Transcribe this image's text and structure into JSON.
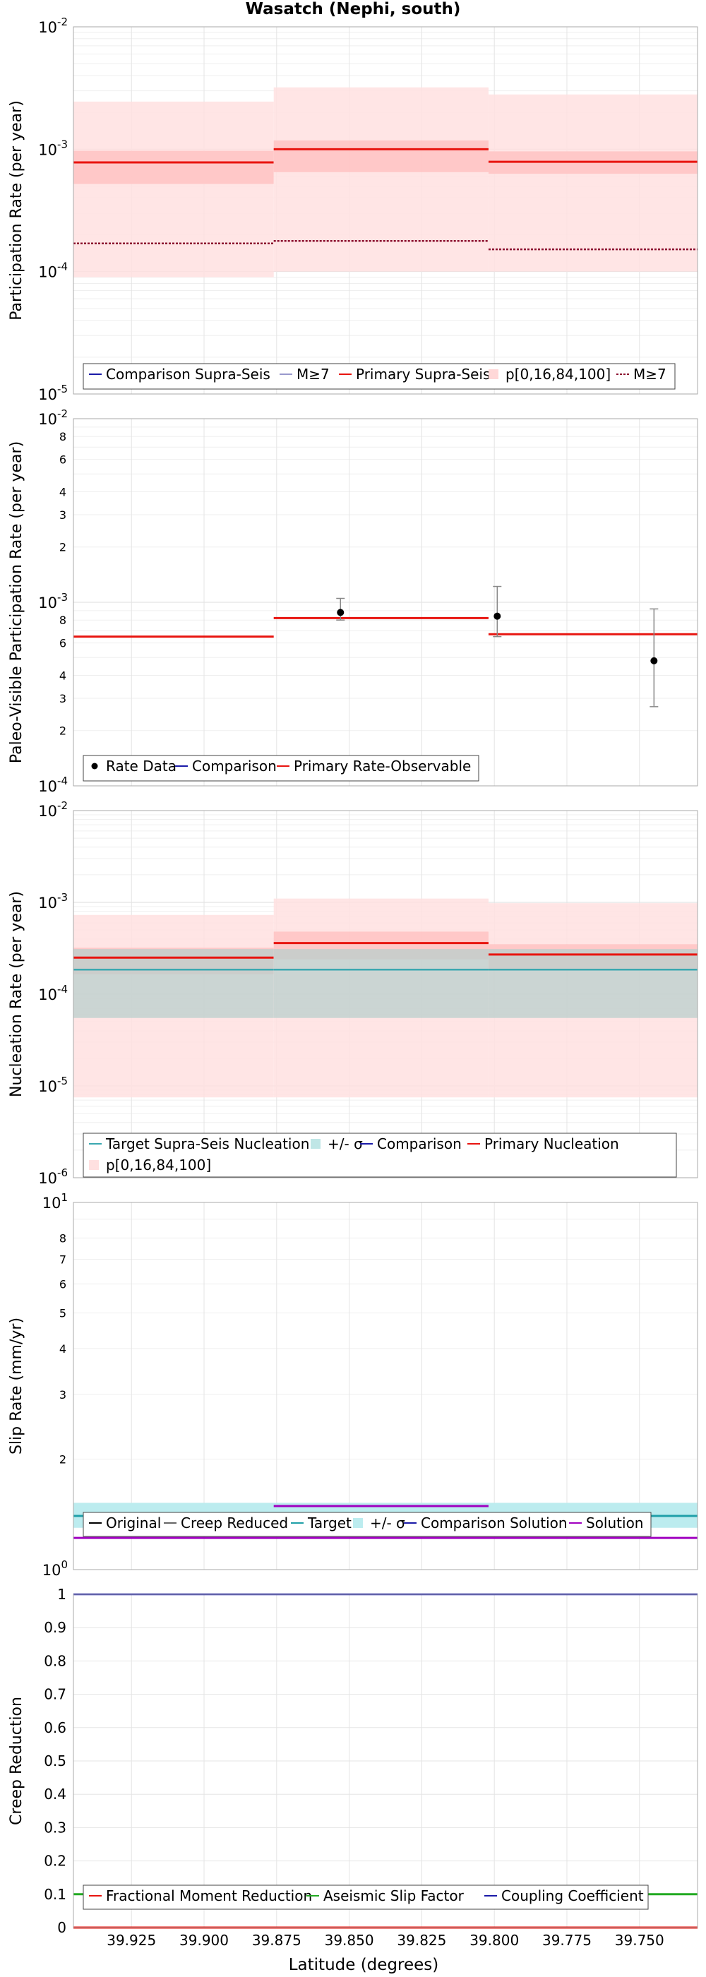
{
  "figure": {
    "title": "Wasatch (Nephi, south)",
    "xlabel": "Latitude (degrees)"
  },
  "chart_data": [
    {
      "type": "line",
      "ylabel": "Participation Rate (per year)",
      "yscale": "log",
      "ylim": [
        1e-05,
        0.01
      ],
      "ytick_labels": [
        {
          "base": "10",
          "exp": "-5",
          "value": 1e-05
        },
        {
          "base": "10",
          "exp": "-4",
          "value": 0.0001
        },
        {
          "base": "10",
          "exp": "-3",
          "value": 0.001
        },
        {
          "base": "10",
          "exp": "-2",
          "value": 0.01
        }
      ],
      "xlim": [
        39.945,
        39.73
      ],
      "xticks": [
        39.925,
        39.9,
        39.875,
        39.85,
        39.825,
        39.8,
        39.775,
        39.75
      ],
      "grid": true,
      "legend_position": "bottom",
      "segments": [
        {
          "x": [
            39.945,
            39.876
          ],
          "primary": 0.00078,
          "p16_84": [
            0.00052,
            0.00097
          ],
          "p0_100": [
            9e-05,
            0.00245
          ],
          "m7": 0.00017
        },
        {
          "x": [
            39.876,
            39.802
          ],
          "primary": 0.001,
          "p16_84": [
            0.00065,
            0.00118
          ],
          "p0_100": [
            0.0001,
            0.0032
          ],
          "m7": 0.000178
        },
        {
          "x": [
            39.802,
            39.73
          ],
          "primary": 0.00079,
          "p16_84": [
            0.00063,
            0.00096
          ],
          "p0_100": [
            0.0001,
            0.0028
          ],
          "m7": 0.000152
        }
      ],
      "legend": [
        "Comparison Supra-Seis",
        "M≥7",
        "Primary Supra-Seis",
        "p[0,16,84,100]",
        "M≥7"
      ],
      "colors": {
        "primary": "#e8140f",
        "band_outer": "#ffe0e0",
        "band_inner": "#ffc4c4",
        "m7": "#8b0e2e",
        "comparison": "#1a1aa8"
      }
    },
    {
      "type": "line",
      "ylabel": "Paleo-Visible Participation Rate (per year)",
      "yscale": "log",
      "ylim": [
        0.0001,
        0.01
      ],
      "ytick_labels": [
        {
          "base": "10",
          "exp": "-4",
          "value": 0.0001
        },
        {
          "base": "10",
          "exp": "-3",
          "value": 0.001
        },
        {
          "base": "10",
          "exp": "-2",
          "value": 0.01
        }
      ],
      "minor_tick_labels": [
        "2",
        "3",
        "4",
        "6",
        "8",
        "2",
        "3",
        "4",
        "6",
        "8"
      ],
      "minor_tick_values": [
        0.0002,
        0.0003,
        0.0004,
        0.0006,
        0.0008,
        0.002,
        0.003,
        0.004,
        0.006,
        0.008
      ],
      "segments": [
        {
          "x": [
            39.945,
            39.876
          ],
          "primary": 0.00065
        },
        {
          "x": [
            39.876,
            39.802
          ],
          "primary": 0.00082
        },
        {
          "x": [
            39.802,
            39.73
          ],
          "primary": 0.00067
        }
      ],
      "rate_data": [
        {
          "x": 39.853,
          "y": 0.00088,
          "lo": 0.0008,
          "hi": 0.00105
        },
        {
          "x": 39.799,
          "y": 0.00084,
          "lo": 0.00065,
          "hi": 0.00122
        },
        {
          "x": 39.745,
          "y": 0.00048,
          "lo": 0.00027,
          "hi": 0.00092
        }
      ],
      "legend": [
        "Rate Data",
        "Comparison",
        "Primary Rate-Observable"
      ]
    },
    {
      "type": "line",
      "ylabel": "Nucleation Rate (per year)",
      "yscale": "log",
      "ylim": [
        1e-06,
        0.01
      ],
      "ytick_labels": [
        {
          "base": "10",
          "exp": "-6",
          "value": 1e-06
        },
        {
          "base": "10",
          "exp": "-5",
          "value": 1e-05
        },
        {
          "base": "10",
          "exp": "-4",
          "value": 0.0001
        },
        {
          "base": "10",
          "exp": "-3",
          "value": 0.001
        },
        {
          "base": "10",
          "exp": "-2",
          "value": 0.01
        }
      ],
      "segments": [
        {
          "x": [
            39.945,
            39.876
          ],
          "primary": 0.00025,
          "p16_84": [
            0.000165,
            0.00032
          ],
          "p0_100": [
            7.5e-06,
            0.00073
          ],
          "target": 0.000185,
          "sigma": [
            5.5e-05,
            0.00031
          ]
        },
        {
          "x": [
            39.876,
            39.802
          ],
          "primary": 0.00036,
          "p16_84": [
            0.00024,
            0.00048
          ],
          "p0_100": [
            7.5e-06,
            0.0011
          ],
          "target": 0.000185,
          "sigma": [
            5.5e-05,
            0.00031
          ]
        },
        {
          "x": [
            39.802,
            39.73
          ],
          "primary": 0.00027,
          "p16_84": [
            0.00019,
            0.00035
          ],
          "p0_100": [
            7.5e-06,
            0.00098
          ],
          "target": 0.000185,
          "sigma": [
            5.5e-05,
            0.00031
          ]
        }
      ],
      "legend": [
        "Target Supra-Seis Nucleation",
        "+/- σ",
        "Comparison",
        "Primary Nucleation",
        "p[0,16,84,100]"
      ],
      "colors": {
        "target": "#3aa8b0",
        "sigma": "#b9cfcc"
      }
    },
    {
      "type": "line",
      "ylabel": "Slip Rate (mm/yr)",
      "yscale": "log",
      "ylim": [
        1,
        10
      ],
      "ytick_labels": [
        {
          "base": "10",
          "exp": "0",
          "value": 1
        },
        {
          "base": "10",
          "exp": "1",
          "value": 10
        }
      ],
      "minor_tick_labels": [
        "2",
        "3",
        "4",
        "5",
        "6",
        "7",
        "8"
      ],
      "minor_tick_values": [
        2,
        3,
        4,
        5,
        6,
        7,
        8
      ],
      "target": 1.4,
      "sigma": [
        1.3,
        1.52
      ],
      "segments": [
        {
          "x": [
            39.945,
            39.876
          ],
          "solution": null
        },
        {
          "x": [
            39.876,
            39.802
          ],
          "solution": 1.49
        },
        {
          "x": [
            39.802,
            39.73
          ],
          "solution": 1.22
        }
      ],
      "solution_lower": 1.22,
      "legend": [
        "Original",
        "Creep Reduced",
        "Target",
        "+/- σ",
        "Comparison Solution",
        "Solution"
      ],
      "colors": {
        "target": "#1f9fa8",
        "sigma": "#bcecef",
        "solution": "#a000c0"
      }
    },
    {
      "type": "line",
      "ylabel": "Creep Reduction",
      "yscale": "linear",
      "ylim": [
        0,
        1
      ],
      "yticks": [
        "0",
        "0.1",
        "0.2",
        "0.3",
        "0.4",
        "0.5",
        "0.6",
        "0.7",
        "0.8",
        "0.9",
        "1"
      ],
      "ytick_values": [
        0,
        0.1,
        0.2,
        0.3,
        0.4,
        0.5,
        0.6,
        0.7,
        0.8,
        0.9,
        1
      ],
      "fractional_moment_reduction": 0.0,
      "aseismic_slip_factor": 0.1,
      "coupling_coefficient": 1.0,
      "legend": [
        "Fractional Moment Reduction",
        "Aseismic Slip Factor",
        "Coupling Coefficient"
      ],
      "colors": {
        "fmr": "#e8140f",
        "asf": "#22aa22",
        "cc": "#1a1aa8"
      }
    }
  ]
}
